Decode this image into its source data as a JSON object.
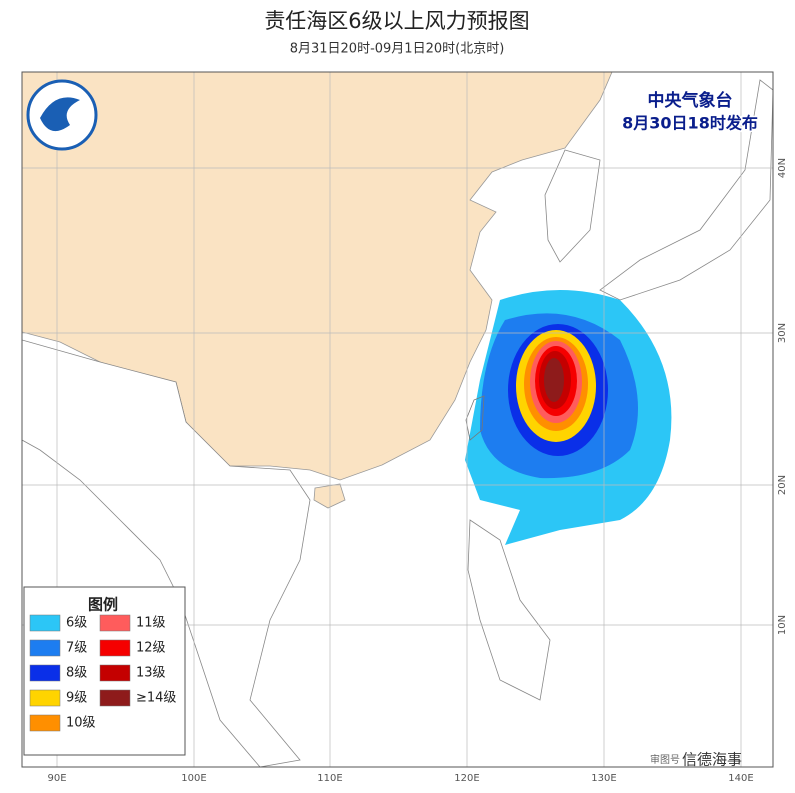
{
  "header": {
    "title": "责任海区6级以上风力预报图",
    "subtitle": "8月31日20时-09月1日20时(北京时)"
  },
  "issuer": {
    "name": "中央气象台",
    "time": "8月30日18时发布"
  },
  "legend": {
    "title": "图例",
    "items": [
      {
        "label": "6级",
        "color": "#2cc6f6"
      },
      {
        "label": "7级",
        "color": "#1d7df0"
      },
      {
        "label": "8级",
        "color": "#0a2fe8"
      },
      {
        "label": "9级",
        "color": "#ffd400"
      },
      {
        "label": "10级",
        "color": "#ff8f00"
      },
      {
        "label": "11级",
        "color": "#ff5c5c"
      },
      {
        "label": "12级",
        "color": "#f50000"
      },
      {
        "label": "13级",
        "color": "#c40000"
      },
      {
        "label": "≥14级",
        "color": "#8e1b1b"
      }
    ]
  },
  "axes": {
    "longitudes": [
      "90E",
      "100E",
      "110E",
      "120E",
      "130E",
      "140E"
    ],
    "latitudes": [
      "40N",
      "30N",
      "20N",
      "10N"
    ]
  },
  "footer": {
    "credit": "审图号",
    "watermark": "信德海事"
  }
}
